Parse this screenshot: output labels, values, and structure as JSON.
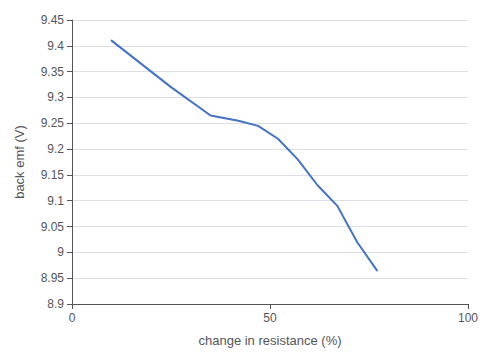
{
  "chart_data": {
    "type": "line",
    "xlabel": "change in resistance (%)",
    "ylabel": "back emf (V)",
    "x": [
      10,
      25,
      35,
      42,
      47,
      52,
      57,
      62,
      67,
      72,
      77
    ],
    "values": [
      9.41,
      9.32,
      9.265,
      9.255,
      9.245,
      9.22,
      9.18,
      9.13,
      9.09,
      9.02,
      8.965
    ],
    "color": "#4472C4",
    "xlim": [
      0,
      100
    ],
    "ylim": [
      8.9,
      9.45
    ],
    "xticks": [
      0,
      50,
      100
    ],
    "yticks": [
      8.9,
      8.95,
      9.0,
      9.05,
      9.1,
      9.15,
      9.2,
      9.25,
      9.3,
      9.35,
      9.4,
      9.45
    ],
    "grid": true
  }
}
